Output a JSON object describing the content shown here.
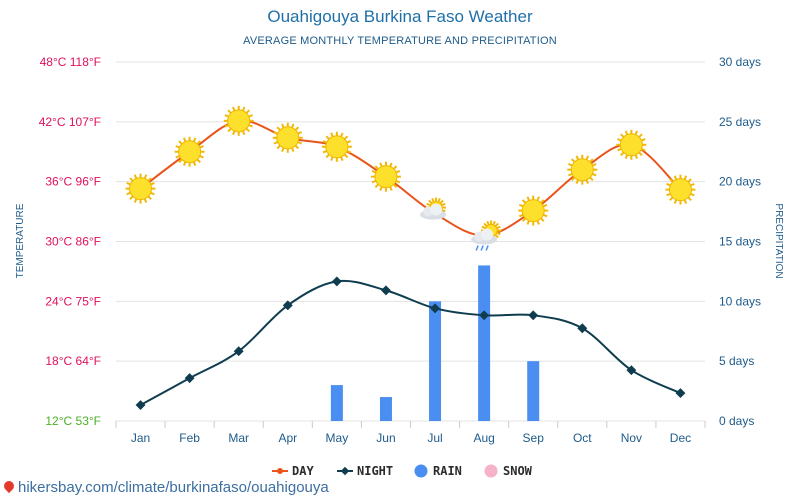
{
  "header": {
    "title": "Ouahigouya Burkina Faso Weather",
    "subtitle": "AVERAGE MONTHLY TEMPERATURE AND PRECIPITATION"
  },
  "footer": {
    "url": "hikersbay.com/climate/burkinafaso/ouahigouya"
  },
  "chart_data": {
    "type": "line",
    "categories": [
      "Jan",
      "Feb",
      "Mar",
      "Apr",
      "May",
      "Jun",
      "Jul",
      "Aug",
      "Sep",
      "Oct",
      "Nov",
      "Dec"
    ],
    "series": [
      {
        "name": "DAY",
        "type": "line",
        "unit": "°C",
        "color": "#e8541a",
        "values": [
          35.3,
          39.0,
          42.1,
          40.4,
          39.5,
          36.5,
          32.8,
          30.6,
          33.1,
          37.2,
          39.7,
          35.2
        ]
      },
      {
        "name": "NIGHT",
        "type": "line",
        "unit": "°C",
        "color": "#0f3d4f",
        "values": [
          13.6,
          16.3,
          19.0,
          23.6,
          26.0,
          25.1,
          23.3,
          22.6,
          22.6,
          21.3,
          17.1,
          14.8
        ]
      },
      {
        "name": "RAIN",
        "type": "bar",
        "unit": "days",
        "color": "#4a8ef2",
        "values": [
          0,
          0,
          0,
          0,
          3,
          2,
          10,
          13,
          5,
          0,
          0,
          0
        ]
      },
      {
        "name": "SNOW",
        "type": "bar",
        "unit": "days",
        "color": "#f6b2c8",
        "values": [
          0,
          0,
          0,
          0,
          0,
          0,
          0,
          0,
          0,
          0,
          0,
          0
        ]
      }
    ],
    "weather_icons": [
      "sun",
      "sun",
      "sun",
      "sun",
      "sun",
      "sun",
      "partly-cloudy",
      "partly-cloudy-rain",
      "sun",
      "sun",
      "sun",
      "sun"
    ],
    "y_left": {
      "label": "TEMPERATURE",
      "range": [
        12,
        48
      ],
      "ticks": [
        {
          "value": 48,
          "label": "48°C 118°F",
          "color": "#e0105e"
        },
        {
          "value": 42,
          "label": "42°C 107°F",
          "color": "#e0105e"
        },
        {
          "value": 36,
          "label": "36°C 96°F",
          "color": "#e0105e"
        },
        {
          "value": 30,
          "label": "30°C 86°F",
          "color": "#e0105e"
        },
        {
          "value": 24,
          "label": "24°C 75°F",
          "color": "#e0105e"
        },
        {
          "value": 18,
          "label": "18°C 64°F",
          "color": "#e0105e"
        },
        {
          "value": 12,
          "label": "12°C 53°F",
          "color": "#4caf27"
        }
      ]
    },
    "y_right": {
      "label": "PRECIPITATION",
      "range": [
        0,
        30
      ],
      "ticks": [
        {
          "value": 30,
          "label": "30 days"
        },
        {
          "value": 25,
          "label": "25 days"
        },
        {
          "value": 20,
          "label": "20 days"
        },
        {
          "value": 15,
          "label": "15 days"
        },
        {
          "value": 10,
          "label": "10 days"
        },
        {
          "value": 5,
          "label": "5 days"
        },
        {
          "value": 0,
          "label": "0 days"
        }
      ]
    },
    "grid": true,
    "legend_position": "bottom"
  }
}
